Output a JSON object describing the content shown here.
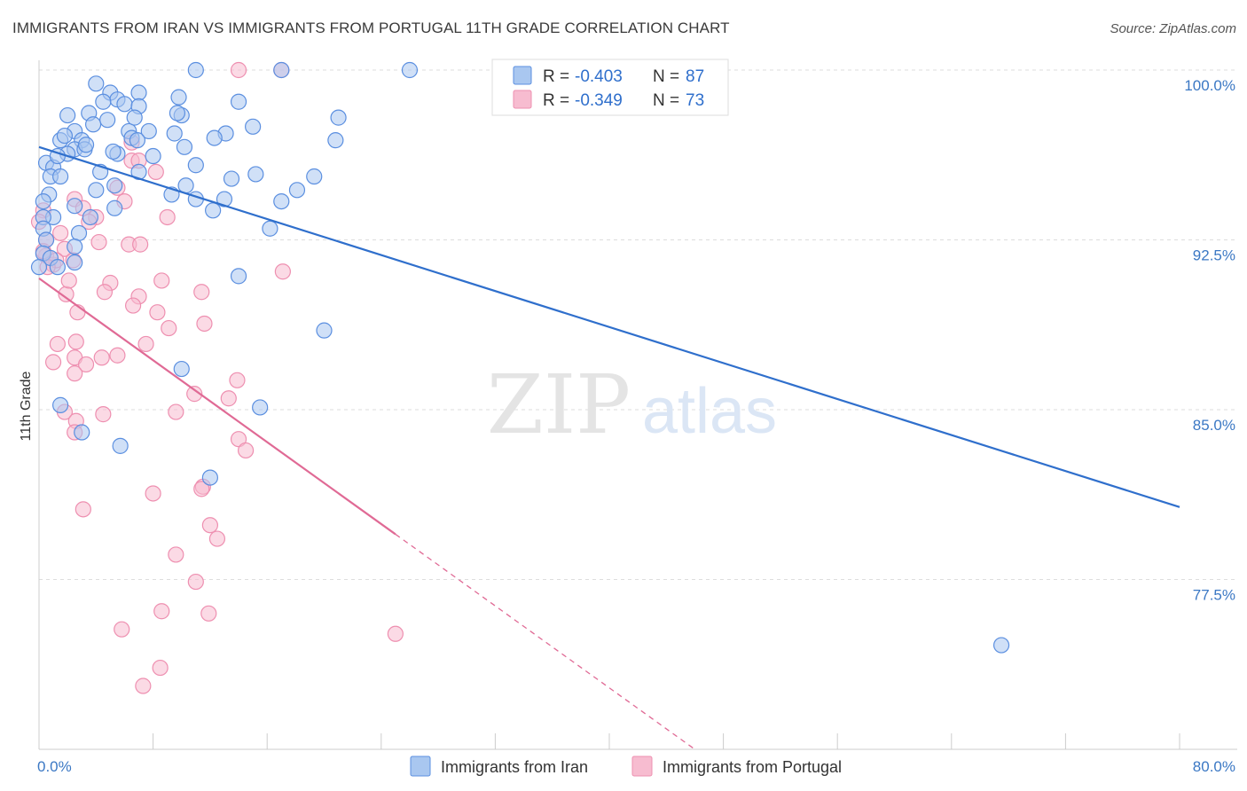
{
  "header": {
    "title": "IMMIGRANTS FROM IRAN VS IMMIGRANTS FROM PORTUGAL 11TH GRADE CORRELATION CHART",
    "source": "Source: ZipAtlas.com"
  },
  "watermark": {
    "zip": "ZIP",
    "atlas": "atlas"
  },
  "legend": {
    "r_label": "R =",
    "n_label": "N =",
    "entries": [
      {
        "r": "-0.403",
        "n": "87",
        "color": "#5b8fe0"
      },
      {
        "r": "-0.349",
        "n": "73",
        "color": "#f08fb0"
      }
    ]
  },
  "bottom_legend": {
    "iran": "Immigrants from Iran",
    "portugal": "Immigrants from Portugal"
  },
  "colors": {
    "iran_fill": "#a9c7f0",
    "iran_stroke": "#5b8fe0",
    "iran_line": "#2f6fcc",
    "portugal_fill": "#f7bcd0",
    "portugal_stroke": "#ee8fb0",
    "portugal_line": "#e06a95",
    "grid": "#dddddd",
    "tick_text": "#3b78c4"
  },
  "chart_data": {
    "type": "scatter",
    "title": "IMMIGRANTS FROM IRAN VS IMMIGRANTS FROM PORTUGAL 11TH GRADE CORRELATION CHART",
    "xlabel": "",
    "ylabel": "11th Grade",
    "xlim": [
      0,
      80
    ],
    "ylim": [
      71.5,
      101.5
    ],
    "x_tick_labels": [
      "0.0%",
      "80.0%"
    ],
    "y_ticks": [
      77.5,
      85.0,
      92.5,
      100.0
    ],
    "y_tick_labels": [
      "77.5%",
      "85.0%",
      "92.5%",
      "100.0%"
    ],
    "grid": true,
    "series": [
      {
        "name": "Immigrants from Iran",
        "r": -0.403,
        "n": 87,
        "trend": {
          "x": [
            0,
            80
          ],
          "y": [
            96.6,
            80.7
          ]
        },
        "points": [
          [
            11,
            100
          ],
          [
            17,
            100
          ],
          [
            26,
            100
          ],
          [
            4,
            99.4
          ],
          [
            5,
            99
          ],
          [
            7,
            99
          ],
          [
            5.5,
            98.7
          ],
          [
            4.5,
            98.6
          ],
          [
            6,
            98.5
          ],
          [
            9.8,
            98.8
          ],
          [
            14,
            98.6
          ],
          [
            7,
            98.4
          ],
          [
            2,
            98
          ],
          [
            3.5,
            98.1
          ],
          [
            10,
            98
          ],
          [
            21,
            97.9
          ],
          [
            3.8,
            97.6
          ],
          [
            15,
            97.5
          ],
          [
            6.3,
            97.3
          ],
          [
            2.5,
            97.3
          ],
          [
            7.7,
            97.3
          ],
          [
            9.5,
            97.2
          ],
          [
            13.1,
            97.2
          ],
          [
            6.5,
            97.0
          ],
          [
            12.3,
            97
          ],
          [
            1.5,
            96.9
          ],
          [
            3,
            96.9
          ],
          [
            6.9,
            96.9
          ],
          [
            2.5,
            96.5
          ],
          [
            2,
            96.3
          ],
          [
            3.2,
            96.5
          ],
          [
            10.2,
            96.6
          ],
          [
            5.5,
            96.3
          ],
          [
            0.5,
            95.9
          ],
          [
            1,
            95.7
          ],
          [
            4.3,
            95.5
          ],
          [
            7,
            95.5
          ],
          [
            15.2,
            95.4
          ],
          [
            0.8,
            95.3
          ],
          [
            1.5,
            95.3
          ],
          [
            5.3,
            94.9
          ],
          [
            10.3,
            94.9
          ],
          [
            9.3,
            94.5
          ],
          [
            0.7,
            94.5
          ],
          [
            4,
            94.7
          ],
          [
            11,
            94.3
          ],
          [
            17,
            94.2
          ],
          [
            13,
            94.3
          ],
          [
            0.3,
            94.2
          ],
          [
            2.5,
            94
          ],
          [
            5.3,
            93.9
          ],
          [
            12.2,
            93.8
          ],
          [
            1,
            93.5
          ],
          [
            3.6,
            93.5
          ],
          [
            0.3,
            93.5
          ],
          [
            16.2,
            93.0
          ],
          [
            2.8,
            92.8
          ],
          [
            0.3,
            93
          ],
          [
            0.5,
            92.5
          ],
          [
            2.5,
            92.2
          ],
          [
            0.3,
            91.9
          ],
          [
            0.8,
            91.7
          ],
          [
            2.5,
            91.5
          ],
          [
            1.3,
            91.3
          ],
          [
            0,
            91.3
          ],
          [
            14,
            90.9
          ],
          [
            20,
            88.5
          ],
          [
            10,
            86.8
          ],
          [
            1.5,
            85.2
          ],
          [
            15.5,
            85.1
          ],
          [
            3,
            84
          ],
          [
            5.7,
            83.4
          ],
          [
            12,
            82
          ],
          [
            67.5,
            74.6
          ],
          [
            1.8,
            97.1
          ],
          [
            4.8,
            97.8
          ],
          [
            6.7,
            97.9
          ],
          [
            9.7,
            98.1
          ],
          [
            3.3,
            96.7
          ],
          [
            1.3,
            96.2
          ],
          [
            5.2,
            96.4
          ],
          [
            8,
            96.2
          ],
          [
            11,
            95.8
          ],
          [
            13.5,
            95.2
          ],
          [
            18.1,
            94.7
          ],
          [
            19.3,
            95.3
          ],
          [
            20.8,
            96.9
          ]
        ]
      },
      {
        "name": "Immigrants from Portugal",
        "r": -0.349,
        "n": 73,
        "trend": {
          "x": [
            0,
            25
          ],
          "y": [
            90.8,
            79.5
          ]
        },
        "trend_dashed": {
          "x": [
            25,
            46
          ],
          "y": [
            79.5,
            70.0
          ]
        },
        "points": [
          [
            14,
            100
          ],
          [
            17,
            100
          ],
          [
            6.5,
            96.8
          ],
          [
            6.5,
            96
          ],
          [
            7,
            96
          ],
          [
            8.2,
            95.5
          ],
          [
            5.5,
            94.8
          ],
          [
            2.5,
            94.3
          ],
          [
            6,
            94.2
          ],
          [
            3.1,
            93.9
          ],
          [
            0.3,
            93.8
          ],
          [
            4,
            93.5
          ],
          [
            9,
            93.5
          ],
          [
            3.5,
            93.3
          ],
          [
            0,
            93.3
          ],
          [
            1.5,
            92.8
          ],
          [
            0.5,
            92.5
          ],
          [
            4.2,
            92.4
          ],
          [
            6.3,
            92.3
          ],
          [
            7.1,
            92.3
          ],
          [
            1.8,
            92.1
          ],
          [
            0.5,
            91.8
          ],
          [
            2.4,
            91.6
          ],
          [
            1,
            91.4
          ],
          [
            17.1,
            91.1
          ],
          [
            8.6,
            90.7
          ],
          [
            5,
            90.6
          ],
          [
            4.6,
            90.2
          ],
          [
            1.9,
            90.1
          ],
          [
            11.4,
            90.2
          ],
          [
            7,
            90
          ],
          [
            6.6,
            89.6
          ],
          [
            2.7,
            89.3
          ],
          [
            8.3,
            89.3
          ],
          [
            9.1,
            88.6
          ],
          [
            11.6,
            88.8
          ],
          [
            1.3,
            87.9
          ],
          [
            2.6,
            88
          ],
          [
            7.5,
            87.9
          ],
          [
            2.5,
            87.3
          ],
          [
            4.4,
            87.3
          ],
          [
            1,
            87.1
          ],
          [
            3.3,
            87.0
          ],
          [
            5.5,
            87.4
          ],
          [
            2.5,
            86.6
          ],
          [
            13.9,
            86.3
          ],
          [
            10.9,
            85.7
          ],
          [
            13.3,
            85.5
          ],
          [
            1.8,
            84.9
          ],
          [
            9.6,
            84.9
          ],
          [
            4.5,
            84.8
          ],
          [
            2.6,
            84.5
          ],
          [
            2.5,
            84
          ],
          [
            14,
            83.7
          ],
          [
            14.5,
            83.2
          ],
          [
            11.5,
            81.6
          ],
          [
            11.4,
            81.5
          ],
          [
            8,
            81.3
          ],
          [
            3.1,
            80.6
          ],
          [
            12,
            79.9
          ],
          [
            12.5,
            79.3
          ],
          [
            9.6,
            78.6
          ],
          [
            11,
            77.4
          ],
          [
            8.6,
            76.1
          ],
          [
            11.9,
            76
          ],
          [
            5.8,
            75.3
          ],
          [
            25,
            75.1
          ],
          [
            8.5,
            73.6
          ],
          [
            7.3,
            72.8
          ],
          [
            0.3,
            92.0
          ],
          [
            1.2,
            91.6
          ],
          [
            0.6,
            91.3
          ],
          [
            2.1,
            90.7
          ]
        ]
      }
    ]
  }
}
